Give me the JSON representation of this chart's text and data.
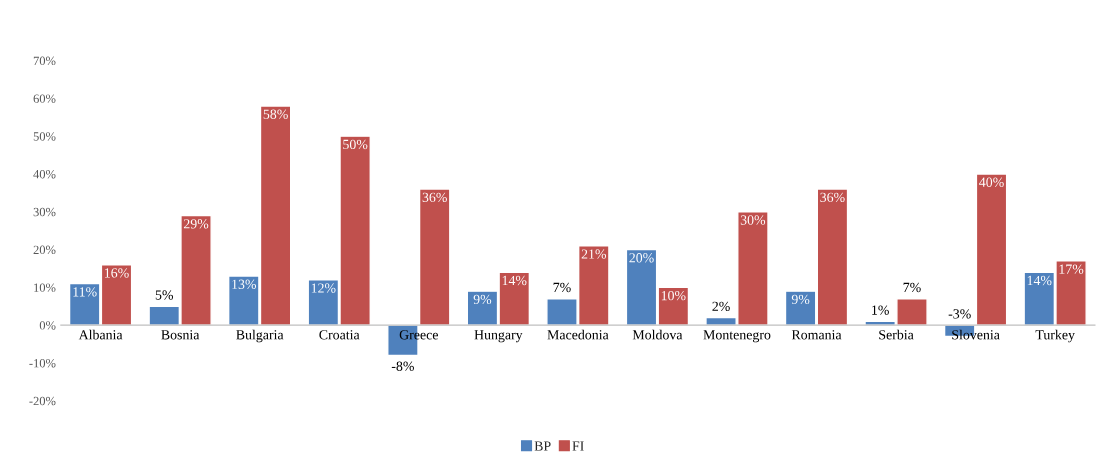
{
  "chart_data": {
    "type": "bar",
    "categories": [
      "Albania",
      "Bosnia",
      "Bulgaria",
      "Croatia",
      "Greece",
      "Hungary",
      "Macedonia",
      "Moldova",
      "Montenegro",
      "Romania",
      "Serbia",
      "Slovenia",
      "Turkey"
    ],
    "series": [
      {
        "name": "BP",
        "color": "#4f81bd",
        "values": [
          11,
          5,
          13,
          12,
          -8,
          9,
          7,
          20,
          2,
          9,
          1,
          -3,
          14
        ],
        "value_labels": [
          "11%",
          "5%",
          "13%",
          "12%",
          "-8%",
          "9%",
          "7%",
          "20%",
          "2%",
          "9%",
          "1%",
          "-3%",
          "14%"
        ]
      },
      {
        "name": "FI",
        "color": "#c0504d",
        "values": [
          16,
          29,
          58,
          50,
          36,
          14,
          21,
          10,
          30,
          36,
          7,
          40,
          17
        ],
        "value_labels": [
          "16%",
          "29%",
          "58%",
          "50%",
          "36%",
          "14%",
          "21%",
          "10%",
          "30%",
          "36%",
          "7%",
          "40%",
          "17%"
        ]
      }
    ],
    "ylim": [
      -20,
      70
    ],
    "yticks": [
      {
        "value": -20,
        "label": "-20%"
      },
      {
        "value": -10,
        "label": "-10%"
      },
      {
        "value": 0,
        "label": "0%"
      },
      {
        "value": 10,
        "label": "10%"
      },
      {
        "value": 20,
        "label": "20%"
      },
      {
        "value": 30,
        "label": "30%"
      },
      {
        "value": 40,
        "label": "40%"
      },
      {
        "value": 50,
        "label": "50%"
      },
      {
        "value": 60,
        "label": "60%"
      },
      {
        "value": 70,
        "label": "70%"
      }
    ],
    "grid": false,
    "legend": "bottom"
  }
}
